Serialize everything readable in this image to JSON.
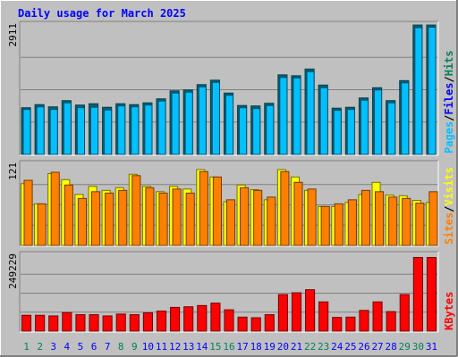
{
  "chart_data": [
    {
      "type": "bar",
      "title": "Daily usage for March 2025",
      "panel": "hits-files-pages",
      "categories": [
        "1",
        "2",
        "3",
        "4",
        "5",
        "6",
        "7",
        "8",
        "9",
        "10",
        "11",
        "12",
        "13",
        "14",
        "15",
        "16",
        "17",
        "18",
        "19",
        "20",
        "21",
        "22",
        "23",
        "24",
        "25",
        "26",
        "27",
        "28",
        "29",
        "30",
        "31"
      ],
      "weekend_days": [
        "1",
        "2",
        "8",
        "9",
        "15",
        "16",
        "22",
        "23",
        "29",
        "30"
      ],
      "ymax_label": "2911",
      "ylim": [
        0,
        2911
      ],
      "series": [
        {
          "name": "Hits",
          "values": [
            1050,
            1120,
            1070,
            1210,
            1110,
            1140,
            1060,
            1140,
            1120,
            1160,
            1250,
            1430,
            1450,
            1570,
            1670,
            1380,
            1100,
            1090,
            1150,
            1790,
            1770,
            1920,
            1560,
            1040,
            1060,
            1270,
            1500,
            1210,
            1660,
            2910,
            2910
          ]
        },
        {
          "name": "Files",
          "values": [
            1050,
            1110,
            1050,
            1200,
            1090,
            1100,
            1040,
            1130,
            1110,
            1150,
            1240,
            1420,
            1440,
            1560,
            1660,
            1370,
            1090,
            1070,
            1140,
            1770,
            1760,
            1900,
            1540,
            1030,
            1050,
            1260,
            1490,
            1200,
            1650,
            2890,
            2900
          ]
        },
        {
          "name": "Pages",
          "values": [
            0,
            0,
            0,
            0,
            0,
            0,
            0,
            0,
            0,
            0,
            0,
            0,
            0,
            0,
            0,
            0,
            0,
            0,
            0,
            0,
            0,
            0,
            0,
            0,
            0,
            0,
            0,
            0,
            0,
            0,
            0
          ]
        }
      ],
      "legend": [
        "Pages",
        "/",
        "Files",
        "/",
        "Hits"
      ],
      "colors": {
        "Hits": "#00805c",
        "Files": "#0000ff",
        "Pages": "#00c0ff"
      }
    },
    {
      "type": "bar",
      "panel": "visits-sites",
      "ymax_label": "121",
      "ylim": [
        0,
        121
      ],
      "series": [
        {
          "name": "Visits",
          "values": [
            92,
            62,
            107,
            98,
            76,
            88,
            82,
            86,
            106,
            88,
            80,
            88,
            84,
            113,
            102,
            65,
            90,
            83,
            68,
            113,
            102,
            82,
            58,
            58,
            64,
            76,
            94,
            75,
            74,
            67,
            64
          ]
        },
        {
          "name": "Sites",
          "values": [
            97,
            62,
            109,
            90,
            70,
            80,
            78,
            82,
            104,
            86,
            78,
            84,
            78,
            110,
            102,
            68,
            86,
            82,
            72,
            110,
            94,
            84,
            58,
            62,
            68,
            82,
            80,
            72,
            70,
            63,
            80
          ]
        }
      ],
      "legend": [
        "Sites",
        "/",
        "Visits"
      ],
      "colors": {
        "Visits": "#ffff00",
        "Sites": "#ff8000"
      }
    },
    {
      "type": "bar",
      "panel": "kbytes",
      "ymax_label": "249229",
      "ylim": [
        0,
        249229
      ],
      "series": [
        {
          "name": "KBytes",
          "values": [
            52000,
            52000,
            50000,
            61000,
            54000,
            54000,
            50000,
            56000,
            54000,
            60000,
            66000,
            78000,
            80000,
            84000,
            92000,
            70000,
            46000,
            44000,
            54000,
            120000,
            126000,
            136000,
            96000,
            45000,
            46000,
            68000,
            96000,
            64000,
            120000,
            242000,
            242000
          ]
        }
      ],
      "legend": [
        "KBytes"
      ],
      "colors": {
        "KBytes": "#ff0000"
      }
    }
  ],
  "palette": {
    "background": "#c0c0c0",
    "frame": "#808080",
    "title_text": "#0000ff",
    "weekday_label": "#0000ff",
    "weekend_label": "#00805c"
  }
}
